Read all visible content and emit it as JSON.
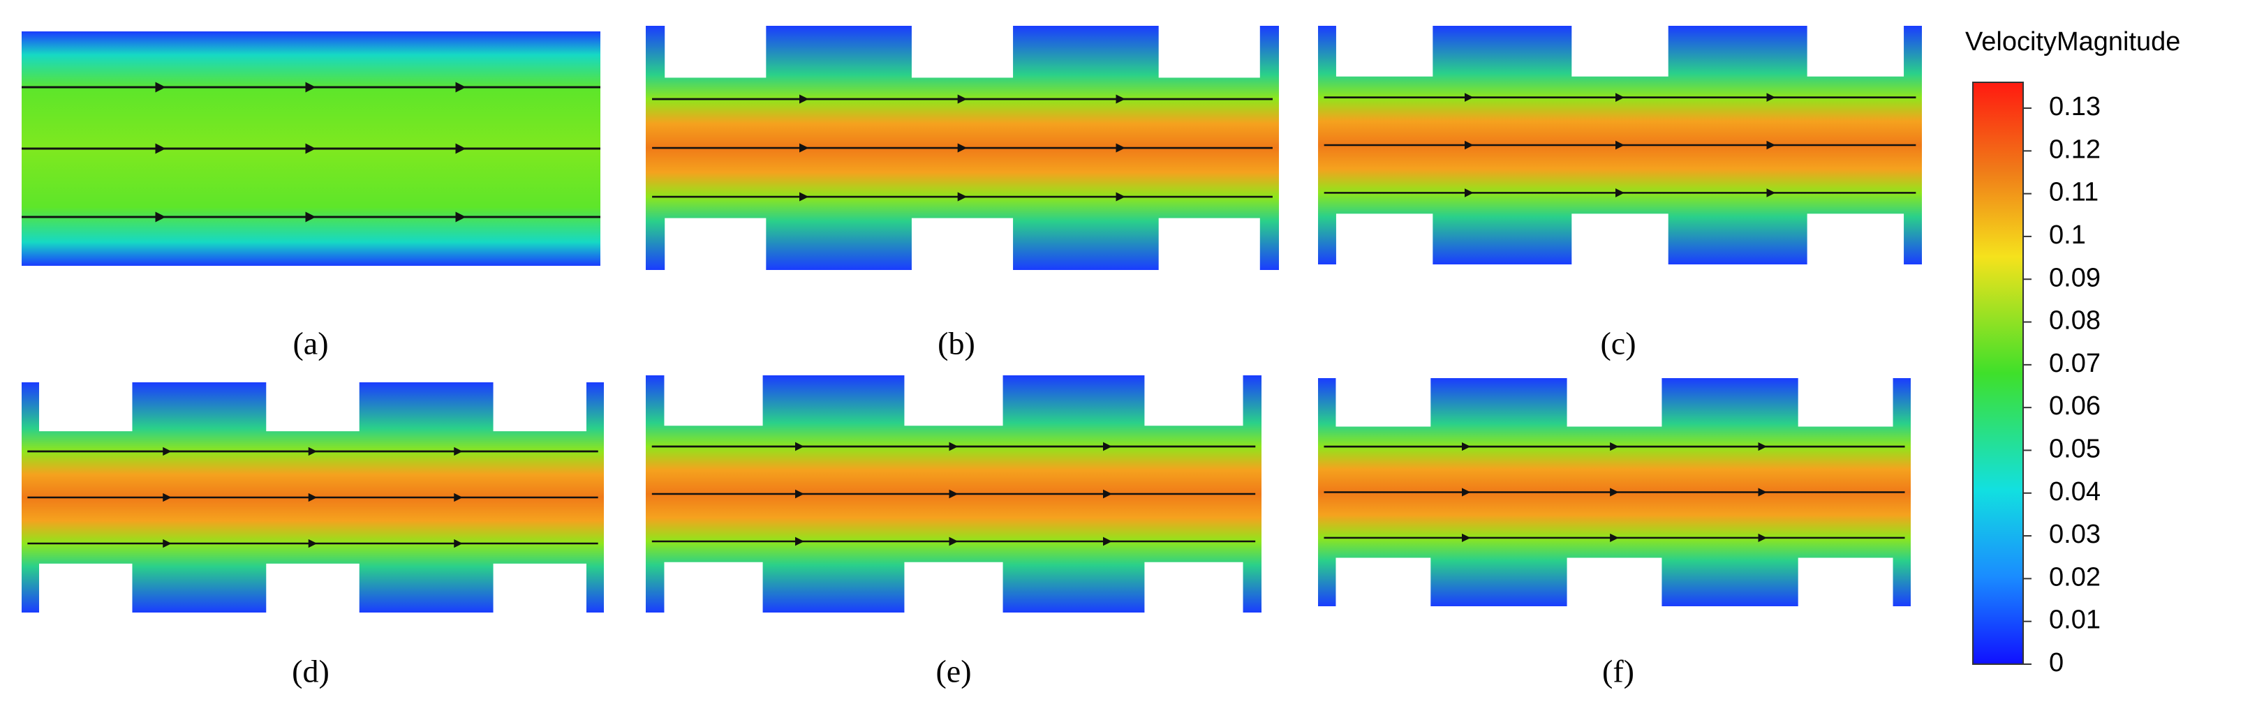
{
  "panels": [
    {
      "label": "(a)"
    },
    {
      "label": "(b)"
    },
    {
      "label": "(c)"
    },
    {
      "label": "(d)"
    },
    {
      "label": "(e)"
    },
    {
      "label": "(f)"
    }
  ],
  "colorbar": {
    "title": "VelocityMagnitude",
    "ticks": [
      0.13,
      0.12,
      0.11,
      0.1,
      0.09,
      0.08,
      0.07,
      0.06,
      0.05,
      0.04,
      0.03,
      0.02,
      0.01,
      0
    ]
  }
}
